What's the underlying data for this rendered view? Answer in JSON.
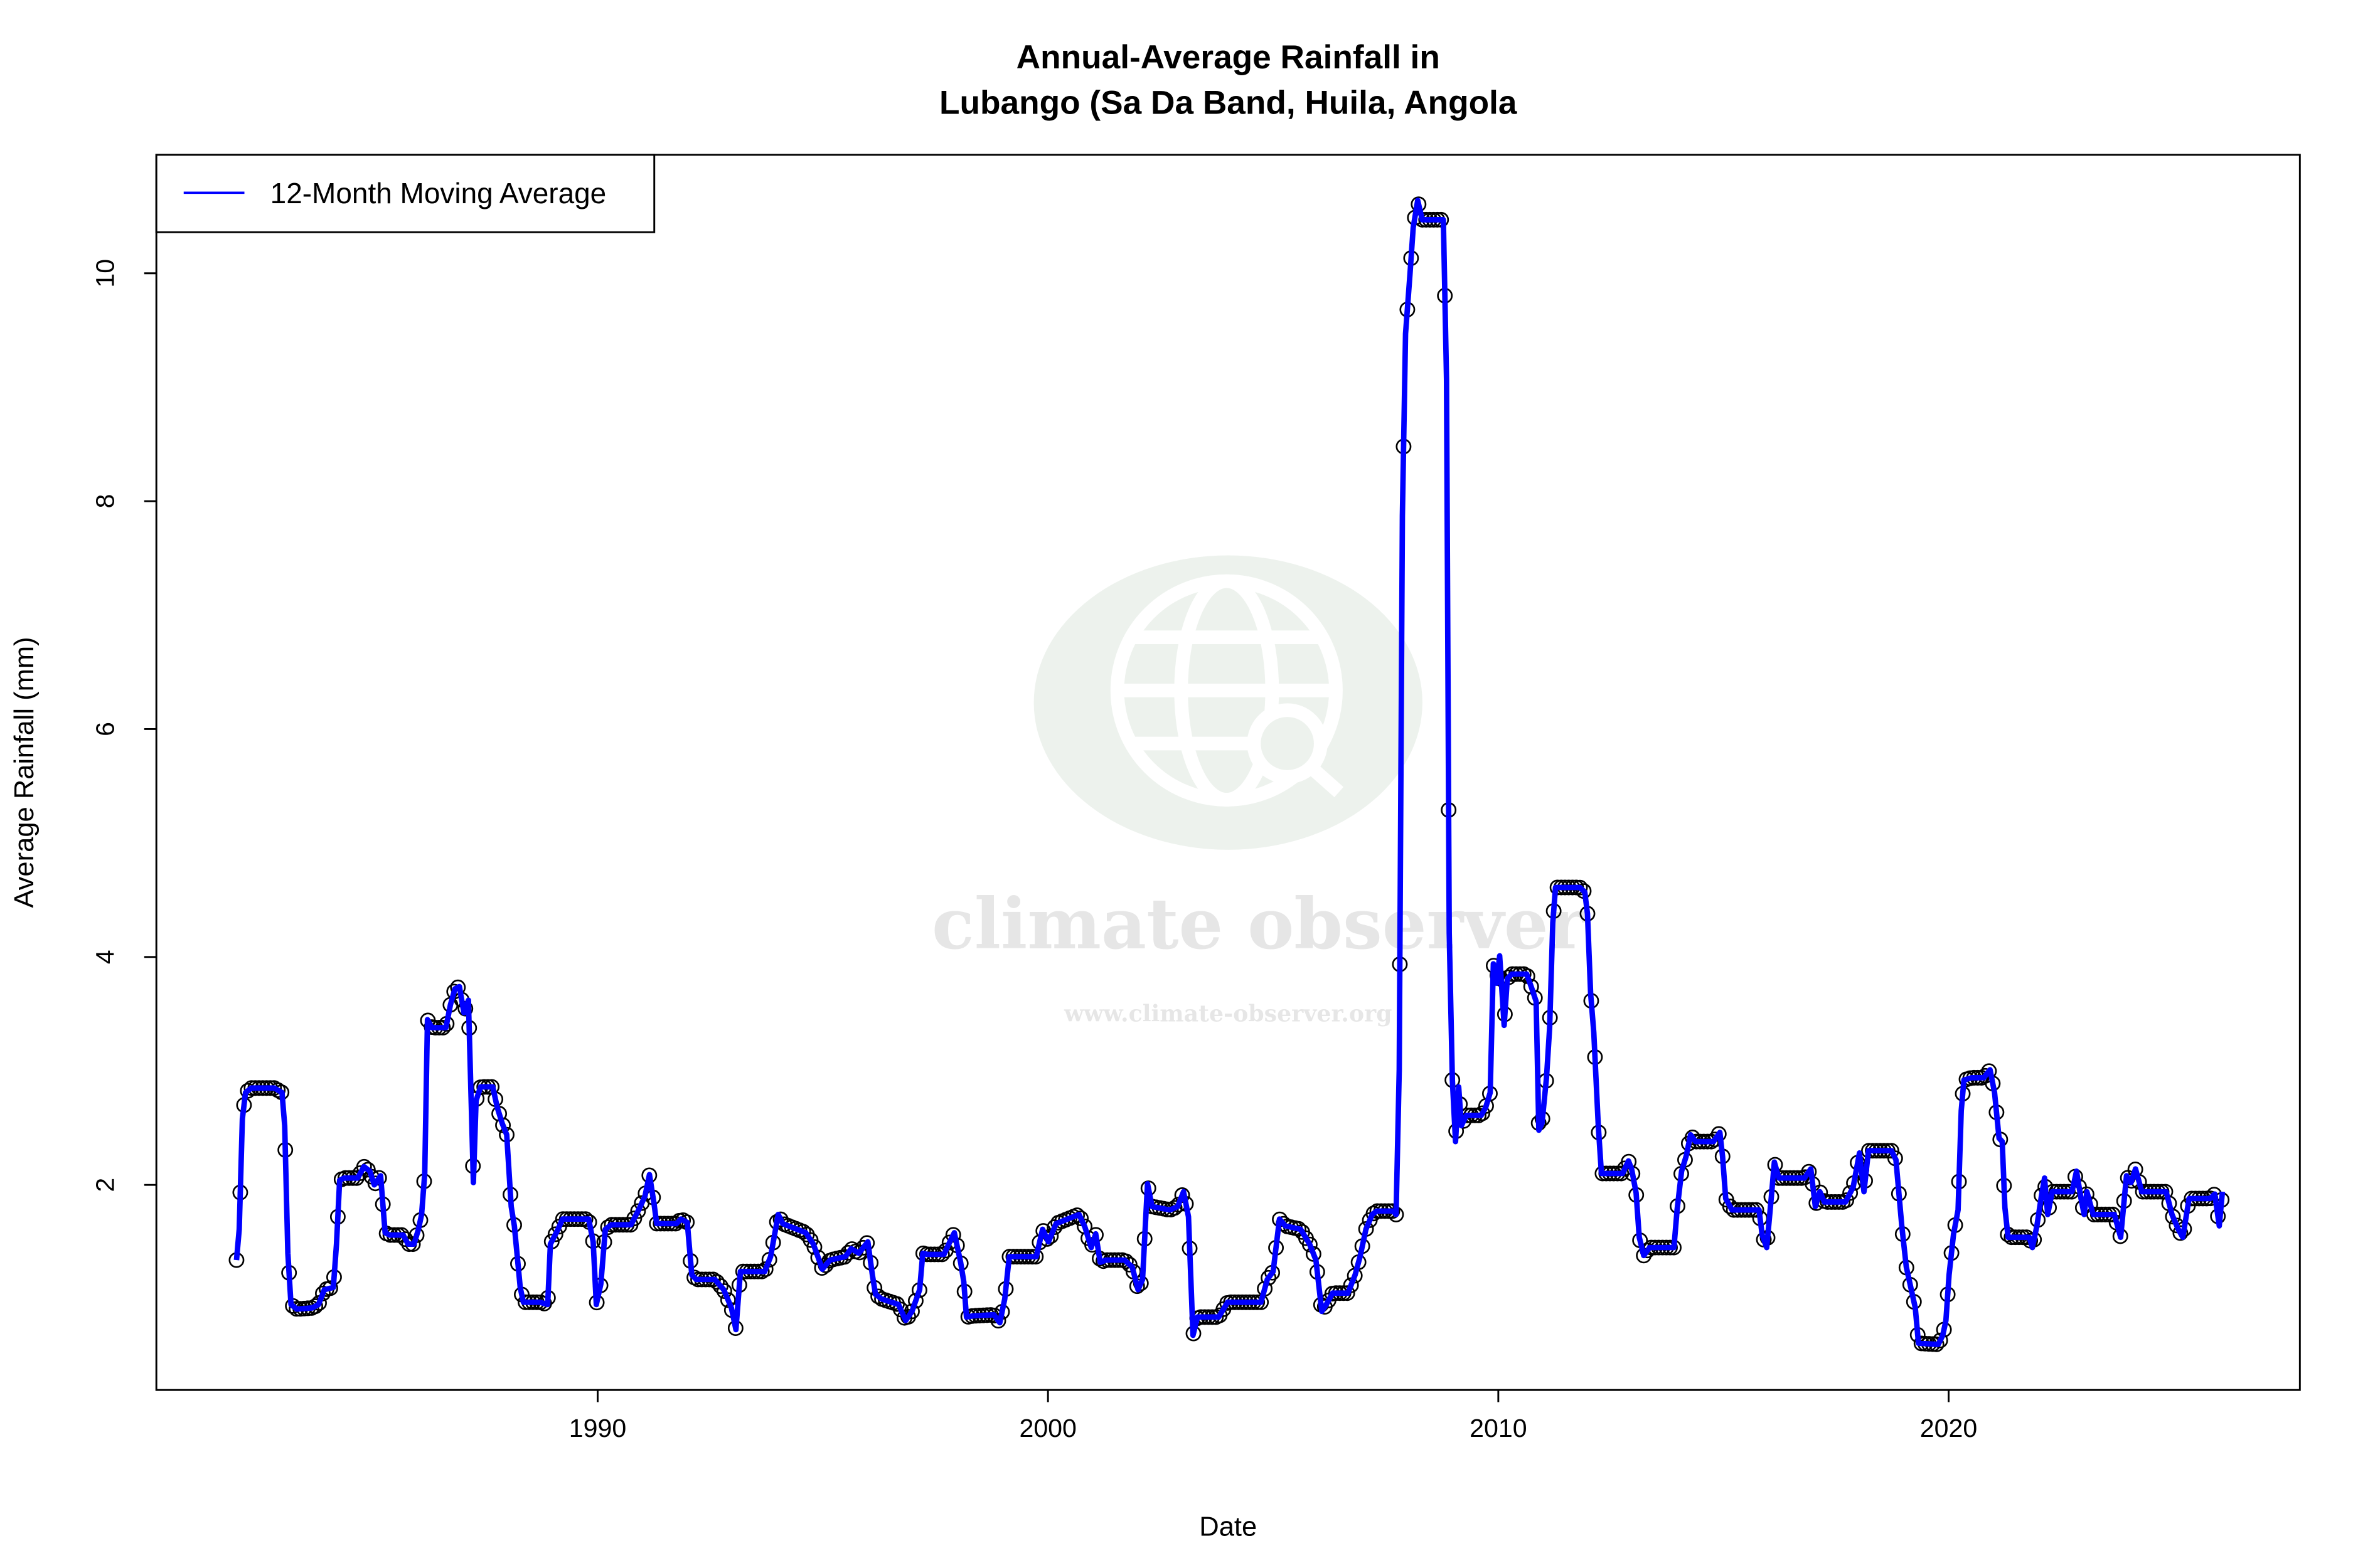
{
  "chart_data": {
    "type": "line",
    "title_line1": "Annual-Average Rainfall in",
    "title_line2": "Lubango (Sa Da Band, Huila, Angola",
    "xlabel": "Date",
    "ylabel": "Average Rainfall (mm)",
    "xlim": [
      1980.2,
      2027.8
    ],
    "ylim": [
      0.2,
      11.04
    ],
    "xticks": [
      1990,
      2000,
      2010,
      2020
    ],
    "xtick_labels": [
      "1990",
      "2000",
      "2010",
      "2020"
    ],
    "yticks": [
      2,
      4,
      6,
      8,
      10
    ],
    "ytick_labels": [
      "2",
      "4",
      "6",
      "8",
      "10"
    ],
    "grid": false,
    "legend": {
      "position": "top-left",
      "entries": [
        "12-Month Moving Average"
      ]
    },
    "colors": {
      "line": "#0000FF",
      "markers": "#000000"
    },
    "markers": "open circles, monthly",
    "series": [
      {
        "name": "12-Month Moving Average",
        "points": [
          [
            1981.98,
            1.34
          ],
          [
            1982.04,
            1.61
          ],
          [
            1982.11,
            2.58
          ],
          [
            1982.18,
            2.81
          ],
          [
            1982.31,
            2.85
          ],
          [
            1982.82,
            2.85
          ],
          [
            1982.99,
            2.81
          ],
          [
            1983.05,
            2.52
          ],
          [
            1983.12,
            1.4
          ],
          [
            1983.19,
            0.95
          ],
          [
            1983.32,
            0.91
          ],
          [
            1983.66,
            0.92
          ],
          [
            1983.8,
            0.95
          ],
          [
            1983.93,
            1.08
          ],
          [
            1984.13,
            1.1
          ],
          [
            1984.2,
            1.48
          ],
          [
            1984.27,
            2.04
          ],
          [
            1984.37,
            2.06
          ],
          [
            1984.67,
            2.06
          ],
          [
            1984.81,
            2.16
          ],
          [
            1984.94,
            2.12
          ],
          [
            1985.04,
            2.0
          ],
          [
            1985.18,
            2.08
          ],
          [
            1985.28,
            1.58
          ],
          [
            1985.38,
            1.56
          ],
          [
            1985.68,
            1.56
          ],
          [
            1985.79,
            1.48
          ],
          [
            1985.92,
            1.48
          ],
          [
            1986.02,
            1.61
          ],
          [
            1986.09,
            1.74
          ],
          [
            1986.16,
            2.1
          ],
          [
            1986.22,
            3.45
          ],
          [
            1986.32,
            3.38
          ],
          [
            1986.63,
            3.38
          ],
          [
            1986.73,
            3.58
          ],
          [
            1986.83,
            3.72
          ],
          [
            1986.93,
            3.74
          ],
          [
            1987.03,
            3.51
          ],
          [
            1987.13,
            3.62
          ],
          [
            1987.24,
            2.02
          ],
          [
            1987.3,
            2.74
          ],
          [
            1987.4,
            2.86
          ],
          [
            1987.67,
            2.86
          ],
          [
            1987.77,
            2.68
          ],
          [
            1987.88,
            2.54
          ],
          [
            1987.98,
            2.44
          ],
          [
            1988.08,
            1.81
          ],
          [
            1988.15,
            1.64
          ],
          [
            1988.28,
            1.1
          ],
          [
            1988.35,
            0.97
          ],
          [
            1988.72,
            0.97
          ],
          [
            1988.89,
            0.95
          ],
          [
            1988.95,
            1.48
          ],
          [
            1989.12,
            1.61
          ],
          [
            1989.22,
            1.7
          ],
          [
            1989.8,
            1.7
          ],
          [
            1989.9,
            1.5
          ],
          [
            1989.97,
            0.95
          ],
          [
            1990.07,
            1.13
          ],
          [
            1990.17,
            1.61
          ],
          [
            1990.3,
            1.65
          ],
          [
            1990.74,
            1.65
          ],
          [
            1990.91,
            1.78
          ],
          [
            1991.05,
            1.9
          ],
          [
            1991.15,
            2.09
          ],
          [
            1991.25,
            1.84
          ],
          [
            1991.31,
            1.66
          ],
          [
            1991.75,
            1.66
          ],
          [
            1991.85,
            1.7
          ],
          [
            1991.99,
            1.67
          ],
          [
            1992.09,
            1.21
          ],
          [
            1992.19,
            1.17
          ],
          [
            1992.6,
            1.17
          ],
          [
            1992.8,
            1.08
          ],
          [
            1992.97,
            0.92
          ],
          [
            1993.07,
            0.73
          ],
          [
            1993.17,
            1.24
          ],
          [
            1993.27,
            1.24
          ],
          [
            1993.71,
            1.24
          ],
          [
            1993.84,
            1.37
          ],
          [
            1994.01,
            1.74
          ],
          [
            1994.11,
            1.66
          ],
          [
            1994.62,
            1.58
          ],
          [
            1994.79,
            1.48
          ],
          [
            1994.99,
            1.26
          ],
          [
            1995.16,
            1.34
          ],
          [
            1995.5,
            1.37
          ],
          [
            1995.63,
            1.44
          ],
          [
            1995.8,
            1.4
          ],
          [
            1996.0,
            1.5
          ],
          [
            1996.1,
            1.21
          ],
          [
            1996.17,
            1.04
          ],
          [
            1996.3,
            1.0
          ],
          [
            1996.68,
            0.95
          ],
          [
            1996.84,
            0.81
          ],
          [
            1996.98,
            0.89
          ],
          [
            1997.15,
            1.08
          ],
          [
            1997.22,
            1.4
          ],
          [
            1997.32,
            1.39
          ],
          [
            1997.69,
            1.39
          ],
          [
            1997.82,
            1.5
          ],
          [
            1997.92,
            1.58
          ],
          [
            1998.06,
            1.32
          ],
          [
            1998.13,
            1.15
          ],
          [
            1998.19,
            0.84
          ],
          [
            1998.33,
            0.85
          ],
          [
            1998.8,
            0.86
          ],
          [
            1998.93,
            0.79
          ],
          [
            1999.04,
            1.0
          ],
          [
            1999.14,
            1.37
          ],
          [
            1999.74,
            1.37
          ],
          [
            1999.88,
            1.61
          ],
          [
            2000.01,
            1.5
          ],
          [
            2000.18,
            1.66
          ],
          [
            2000.69,
            1.74
          ],
          [
            2000.82,
            1.63
          ],
          [
            2000.96,
            1.45
          ],
          [
            2001.06,
            1.57
          ],
          [
            2001.16,
            1.32
          ],
          [
            2001.29,
            1.34
          ],
          [
            2001.7,
            1.34
          ],
          [
            2001.87,
            1.28
          ],
          [
            2002.0,
            1.08
          ],
          [
            2002.1,
            1.17
          ],
          [
            2002.21,
            2.01
          ],
          [
            2002.31,
            1.81
          ],
          [
            2002.71,
            1.78
          ],
          [
            2002.88,
            1.81
          ],
          [
            2003.01,
            1.94
          ],
          [
            2003.12,
            1.72
          ],
          [
            2003.22,
            0.68
          ],
          [
            2003.32,
            0.84
          ],
          [
            2003.79,
            0.84
          ],
          [
            2003.99,
            0.97
          ],
          [
            2004.13,
            0.97
          ],
          [
            2004.73,
            0.97
          ],
          [
            2004.87,
            1.17
          ],
          [
            2005.0,
            1.24
          ],
          [
            2005.14,
            1.7
          ],
          [
            2005.27,
            1.64
          ],
          [
            2005.61,
            1.61
          ],
          [
            2005.81,
            1.48
          ],
          [
            2005.95,
            1.34
          ],
          [
            2006.08,
            0.89
          ],
          [
            2006.18,
            0.95
          ],
          [
            2006.32,
            1.05
          ],
          [
            2006.66,
            1.05
          ],
          [
            2006.82,
            1.21
          ],
          [
            2006.93,
            1.37
          ],
          [
            2007.06,
            1.61
          ],
          [
            2007.2,
            1.74
          ],
          [
            2007.3,
            1.77
          ],
          [
            2007.67,
            1.77
          ],
          [
            2007.73,
            1.74
          ],
          [
            2007.8,
            3.01
          ],
          [
            2007.87,
            7.87
          ],
          [
            2007.94,
            9.47
          ],
          [
            2008.04,
            10.0
          ],
          [
            2008.11,
            10.4
          ],
          [
            2008.21,
            10.64
          ],
          [
            2008.31,
            10.47
          ],
          [
            2008.78,
            10.47
          ],
          [
            2008.85,
            9.07
          ],
          [
            2008.91,
            4.21
          ],
          [
            2008.98,
            2.92
          ],
          [
            2009.05,
            2.38
          ],
          [
            2009.12,
            2.86
          ],
          [
            2009.18,
            2.52
          ],
          [
            2009.29,
            2.61
          ],
          [
            2009.62,
            2.61
          ],
          [
            2009.72,
            2.68
          ],
          [
            2009.82,
            2.81
          ],
          [
            2009.89,
            3.94
          ],
          [
            2009.96,
            3.77
          ],
          [
            2010.03,
            4.01
          ],
          [
            2010.13,
            3.4
          ],
          [
            2010.2,
            3.81
          ],
          [
            2010.3,
            3.85
          ],
          [
            2010.63,
            3.85
          ],
          [
            2010.73,
            3.74
          ],
          [
            2010.84,
            3.61
          ],
          [
            2010.9,
            2.48
          ],
          [
            2010.97,
            2.54
          ],
          [
            2011.07,
            2.94
          ],
          [
            2011.14,
            3.38
          ],
          [
            2011.21,
            4.3
          ],
          [
            2011.27,
            4.61
          ],
          [
            2011.81,
            4.61
          ],
          [
            2011.92,
            4.57
          ],
          [
            2011.98,
            4.38
          ],
          [
            2012.05,
            3.68
          ],
          [
            2012.12,
            3.34
          ],
          [
            2012.22,
            2.52
          ],
          [
            2012.29,
            2.1
          ],
          [
            2012.76,
            2.1
          ],
          [
            2012.89,
            2.21
          ],
          [
            2012.96,
            2.14
          ],
          [
            2013.06,
            1.93
          ],
          [
            2013.13,
            1.54
          ],
          [
            2013.23,
            1.38
          ],
          [
            2013.36,
            1.45
          ],
          [
            2013.9,
            1.45
          ],
          [
            2013.97,
            1.78
          ],
          [
            2014.07,
            2.12
          ],
          [
            2014.17,
            2.25
          ],
          [
            2014.27,
            2.44
          ],
          [
            2014.38,
            2.38
          ],
          [
            2014.78,
            2.38
          ],
          [
            2014.92,
            2.46
          ],
          [
            2014.98,
            2.25
          ],
          [
            2015.05,
            1.88
          ],
          [
            2015.19,
            1.78
          ],
          [
            2015.79,
            1.78
          ],
          [
            2015.86,
            1.56
          ],
          [
            2015.96,
            1.45
          ],
          [
            2016.06,
            1.88
          ],
          [
            2016.13,
            2.2
          ],
          [
            2016.23,
            2.06
          ],
          [
            2016.8,
            2.06
          ],
          [
            2016.94,
            2.14
          ],
          [
            2017.04,
            1.81
          ],
          [
            2017.14,
            1.94
          ],
          [
            2017.24,
            1.85
          ],
          [
            2017.71,
            1.85
          ],
          [
            2017.88,
            1.98
          ],
          [
            2018.02,
            2.28
          ],
          [
            2018.12,
            1.94
          ],
          [
            2018.22,
            2.3
          ],
          [
            2018.73,
            2.3
          ],
          [
            2018.83,
            2.22
          ],
          [
            2018.96,
            1.64
          ],
          [
            2019.06,
            1.28
          ],
          [
            2019.16,
            1.1
          ],
          [
            2019.26,
            0.92
          ],
          [
            2019.33,
            0.61
          ],
          [
            2019.77,
            0.6
          ],
          [
            2019.87,
            0.68
          ],
          [
            2019.94,
            0.81
          ],
          [
            2020.01,
            1.21
          ],
          [
            2020.11,
            1.57
          ],
          [
            2020.21,
            1.78
          ],
          [
            2020.28,
            2.65
          ],
          [
            2020.34,
            2.92
          ],
          [
            2020.51,
            2.94
          ],
          [
            2020.78,
            2.94
          ],
          [
            2020.92,
            3.01
          ],
          [
            2021.02,
            2.81
          ],
          [
            2021.12,
            2.41
          ],
          [
            2021.19,
            2.38
          ],
          [
            2021.25,
            1.8
          ],
          [
            2021.32,
            1.54
          ],
          [
            2021.79,
            1.54
          ],
          [
            2021.86,
            1.45
          ],
          [
            2021.96,
            1.64
          ],
          [
            2022.06,
            1.9
          ],
          [
            2022.13,
            2.06
          ],
          [
            2022.2,
            1.74
          ],
          [
            2022.3,
            1.94
          ],
          [
            2022.74,
            1.94
          ],
          [
            2022.84,
            2.12
          ],
          [
            2022.94,
            1.88
          ],
          [
            2023.01,
            1.74
          ],
          [
            2023.07,
            1.94
          ],
          [
            2023.21,
            1.74
          ],
          [
            2023.68,
            1.74
          ],
          [
            2023.82,
            1.54
          ],
          [
            2023.95,
            2.08
          ],
          [
            2024.05,
            2.02
          ],
          [
            2024.15,
            2.14
          ],
          [
            2024.29,
            1.94
          ],
          [
            2024.83,
            1.94
          ],
          [
            2024.96,
            1.74
          ],
          [
            2025.1,
            1.61
          ],
          [
            2025.2,
            1.54
          ],
          [
            2025.34,
            1.88
          ],
          [
            2025.81,
            1.88
          ],
          [
            2025.91,
            1.92
          ],
          [
            2026.01,
            1.64
          ],
          [
            2026.08,
            1.94
          ]
        ]
      }
    ]
  },
  "watermark": {
    "name": "climate observer",
    "url": "www.climate-observer.org",
    "color": "#dfe8df"
  }
}
